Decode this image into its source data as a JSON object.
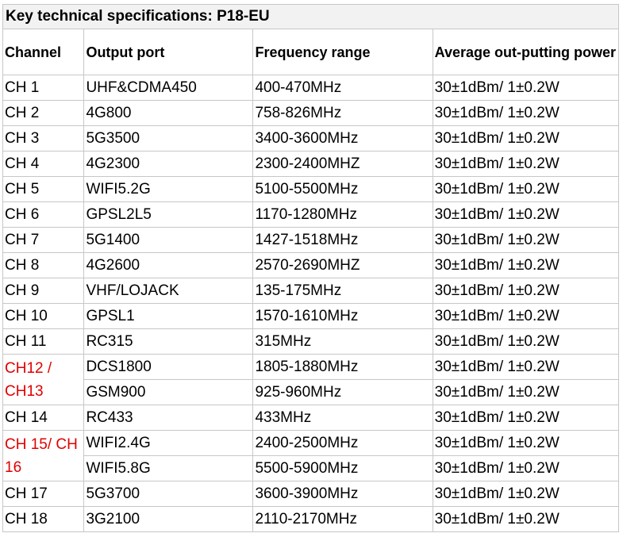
{
  "title": "Key technical specifications: P18-EU",
  "headers": {
    "channel": "Channel",
    "output_port": "Output port",
    "frequency_range": "Frequency range",
    "power": "Average out-putting power"
  },
  "rows": [
    {
      "channel": "CH 1",
      "port": "UHF&CDMA450",
      "freq": "400-470MHz",
      "power": "30±1dBm/ 1±0.2W"
    },
    {
      "channel": "CH 2",
      "port": "4G800",
      "freq": "758-826MHz",
      "power": "30±1dBm/ 1±0.2W"
    },
    {
      "channel": "CH 3",
      "port": "5G3500",
      "freq": "3400-3600MHz",
      "power": "30±1dBm/ 1±0.2W"
    },
    {
      "channel": "CH 4",
      "port": "4G2300",
      "freq": "2300-2400MHZ",
      "power": "30±1dBm/ 1±0.2W"
    },
    {
      "channel": "CH 5",
      "port": "WIFI5.2G",
      "freq": "5100-5500MHz",
      "power": "30±1dBm/ 1±0.2W"
    },
    {
      "channel": "CH 6",
      "port": "GPSL2L5",
      "freq": "1170-1280MHz",
      "power": "30±1dBm/ 1±0.2W"
    },
    {
      "channel": "CH 7",
      "port": "5G1400",
      "freq": "1427-1518MHz",
      "power": "30±1dBm/ 1±0.2W"
    },
    {
      "channel": "CH 8",
      "port": "4G2600",
      "freq": "2570-2690MHZ",
      "power": "30±1dBm/ 1±0.2W"
    },
    {
      "channel": "CH 9",
      "port": "VHF/LOJACK",
      "freq": "135-175MHz",
      "power": "30±1dBm/ 1±0.2W"
    },
    {
      "channel": "CH 10",
      "port": "GPSL1",
      "freq": "1570-1610MHz",
      "power": "30±1dBm/ 1±0.2W"
    },
    {
      "channel": "CH 11",
      "port": "RC315",
      "freq": "315MHz",
      "power": "30±1dBm/ 1±0.2W"
    },
    {
      "channel": "CH12 / CH13",
      "port": "DCS1800",
      "freq": "1805-1880MHz",
      "power": "30±1dBm/ 1±0.2W"
    },
    {
      "channel": "",
      "port": "GSM900",
      "freq": "925-960MHz",
      "power": "30±1dBm/ 1±0.2W"
    },
    {
      "channel": "CH 14",
      "port": "RC433",
      "freq": "433MHz",
      "power": "30±1dBm/ 1±0.2W"
    },
    {
      "channel": "CH 15/ CH 16",
      "port": "WIFI2.4G",
      "freq": "2400-2500MHz",
      "power": "30±1dBm/ 1±0.2W"
    },
    {
      "channel": "",
      "port": "WIFI5.8G",
      "freq": "5500-5900MHz",
      "power": "30±1dBm/ 1±0.2W"
    },
    {
      "channel": "CH 17",
      "port": "5G3700",
      "freq": "3600-3900MHz",
      "power": "30±1dBm/ 1±0.2W"
    },
    {
      "channel": "CH 18",
      "port": "3G2100",
      "freq": "2110-2170MHz",
      "power": "30±1dBm/ 1±0.2W"
    }
  ],
  "colors": {
    "border": "#c7c7c7",
    "highlight_text": "#e00000"
  }
}
